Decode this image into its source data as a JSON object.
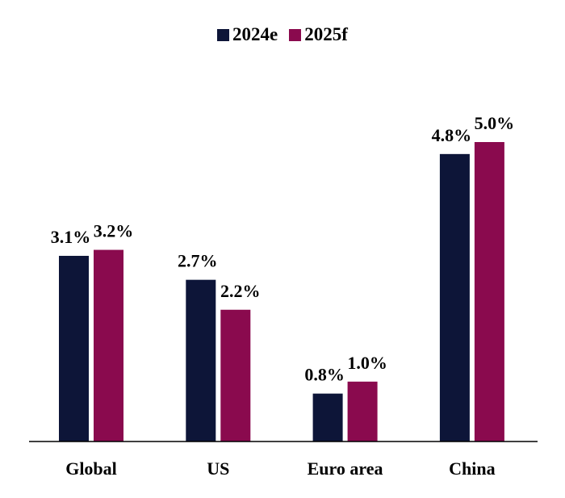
{
  "chart_data": {
    "type": "bar",
    "categories": [
      "Global",
      "US",
      "Euro area",
      "China"
    ],
    "series": [
      {
        "name": "2024e",
        "values": [
          3.1,
          2.7,
          0.8,
          4.8
        ],
        "labels": [
          "3.1%",
          "2.7%",
          "0.8%",
          "4.8%"
        ],
        "color": "#0d1538"
      },
      {
        "name": "2025f",
        "values": [
          3.2,
          2.2,
          1.0,
          5.0
        ],
        "labels": [
          "3.2%",
          "2.2%",
          "1.0%",
          "5.0%"
        ],
        "color": "#8a0a4e"
      }
    ],
    "title": "",
    "xlabel": "",
    "ylabel": "",
    "ylim": [
      0,
      5
    ],
    "grid": false,
    "legend": "top-center"
  }
}
